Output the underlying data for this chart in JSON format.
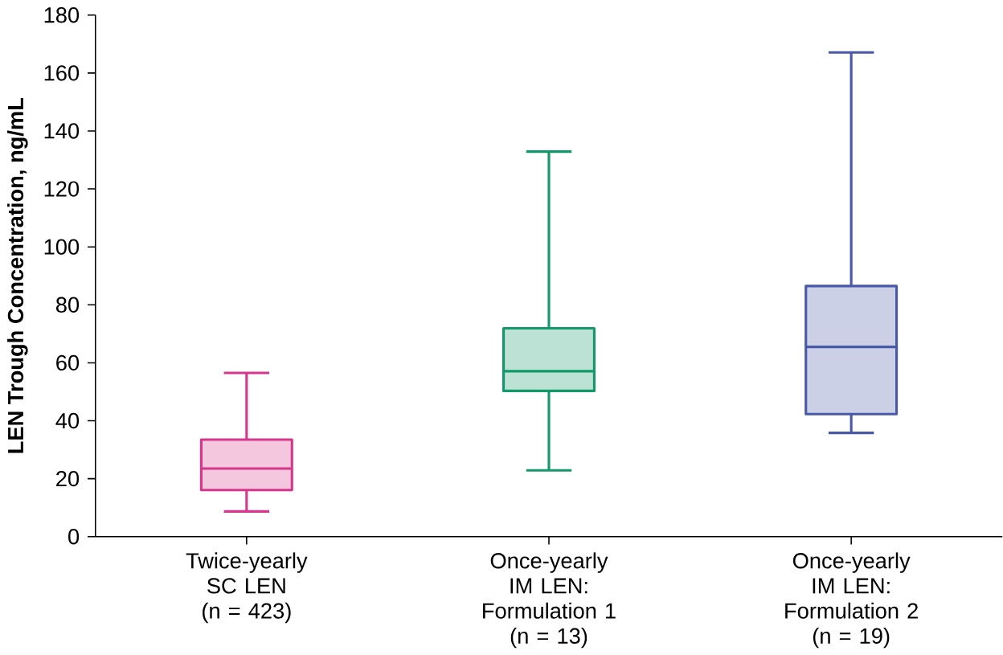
{
  "chart_data": {
    "type": "box",
    "ylabel": "LEN Trough Concentration, ng/mL",
    "categories": [
      "Twice-yearly\nSC LEN\n(n = 423)",
      "Once-yearly\nIM LEN:\nFormulation 1\n(n = 13)",
      "Once-yearly\nIM LEN:\nFormulation 2\n(n = 19)"
    ],
    "colors": [
      "#d6368c",
      "#11996a",
      "#4a58a8"
    ],
    "boxes": [
      {
        "low": 8.7,
        "q1": 16.1,
        "median": 23.5,
        "q3": 33.5,
        "high": 56.5
      },
      {
        "low": 22.9,
        "q1": 50.3,
        "median": 57.1,
        "q3": 71.9,
        "high": 132.9
      },
      {
        "low": 35.8,
        "q1": 42.3,
        "median": 65.5,
        "q3": 86.5,
        "high": 167.1
      }
    ],
    "ylim": [
      0,
      180
    ],
    "yticks": [
      0,
      20,
      40,
      60,
      80,
      100,
      120,
      140,
      160,
      180
    ],
    "grid": false
  }
}
